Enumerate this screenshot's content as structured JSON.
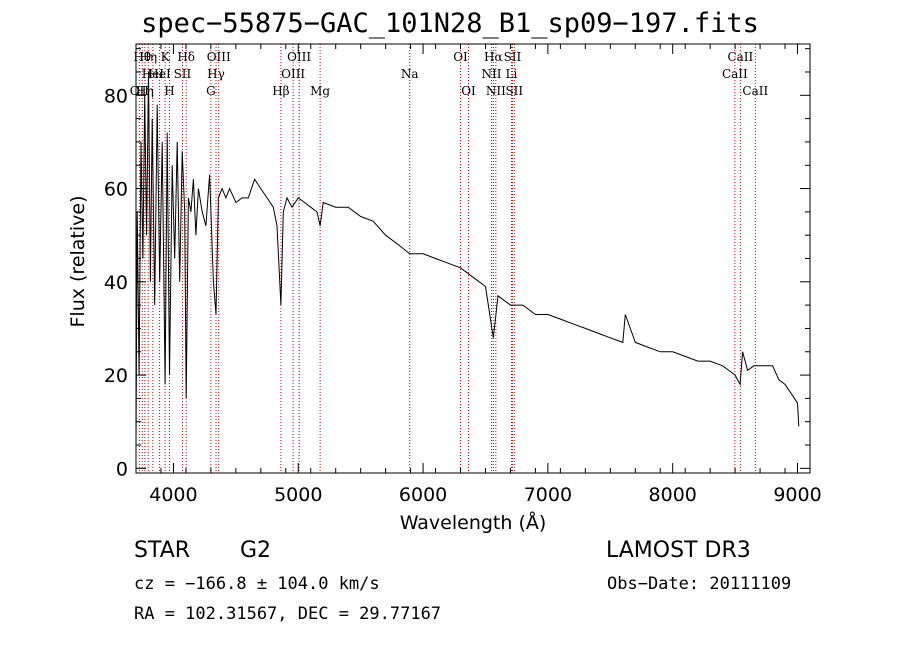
{
  "chart_data": {
    "type": "line",
    "title": "spec−55875−GAC_101N28_B1_sp09−197.fits",
    "xlabel": "Wavelength (Å)",
    "ylabel": "Flux (relative)",
    "xlim": [
      3700,
      9100
    ],
    "ylim": [
      -1,
      91
    ],
    "x_ticks": [
      4000,
      5000,
      6000,
      7000,
      8000,
      9000
    ],
    "y_ticks": [
      0,
      20,
      40,
      60,
      80
    ],
    "series": [
      {
        "name": "spectrum",
        "x": [
          3700,
          3710,
          3725,
          3740,
          3755,
          3770,
          3785,
          3800,
          3815,
          3830,
          3850,
          3870,
          3890,
          3910,
          3933,
          3950,
          3968,
          3990,
          4010,
          4030,
          4050,
          4070,
          4090,
          4102,
          4120,
          4140,
          4160,
          4180,
          4200,
          4230,
          4260,
          4290,
          4320,
          4341,
          4360,
          4390,
          4420,
          4450,
          4500,
          4550,
          4600,
          4650,
          4700,
          4750,
          4800,
          4830,
          4861,
          4880,
          4910,
          4950,
          5000,
          5050,
          5100,
          5150,
          5175,
          5200,
          5300,
          5400,
          5500,
          5600,
          5700,
          5800,
          5893,
          5950,
          6000,
          6100,
          6200,
          6300,
          6400,
          6500,
          6563,
          6600,
          6700,
          6800,
          6900,
          7000,
          7100,
          7200,
          7300,
          7400,
          7500,
          7600,
          7620,
          7700,
          7800,
          7900,
          8000,
          8100,
          8200,
          8300,
          8400,
          8450,
          8500,
          8540,
          8560,
          8600,
          8650,
          8700,
          8750,
          8800,
          8850,
          8900,
          8950,
          9000,
          9010
        ],
        "y": [
          5,
          55,
          20,
          70,
          45,
          80,
          50,
          85,
          40,
          75,
          35,
          78,
          40,
          70,
          18,
          72,
          20,
          65,
          45,
          70,
          40,
          68,
          55,
          15,
          58,
          55,
          62,
          50,
          60,
          55,
          52,
          63,
          40,
          33,
          58,
          60,
          58,
          60,
          57,
          58,
          58,
          62,
          60,
          58,
          56,
          52,
          35,
          55,
          58,
          56,
          58,
          57,
          56,
          55,
          52,
          57,
          56,
          56,
          54,
          53,
          50,
          48,
          46,
          46,
          46,
          45,
          44,
          43,
          41,
          39,
          28,
          37,
          35,
          35,
          33,
          33,
          32,
          31,
          30,
          29,
          28,
          27,
          33,
          27,
          26,
          25,
          25,
          24,
          23,
          23,
          22,
          21,
          20,
          18,
          25,
          21,
          22,
          22,
          22,
          22,
          19,
          18,
          16,
          14,
          9
        ]
      }
    ],
    "lines": [
      {
        "w": 3727,
        "label": "OII",
        "row": 3
      },
      {
        "w": 3750,
        "label": "Hθ",
        "row": 1
      },
      {
        "w": 3771,
        "label": "Hη",
        "row": 3
      },
      {
        "w": 3798,
        "label": "Hη",
        "row": 1
      },
      {
        "w": 3835,
        "label": "HeI",
        "row": 2
      },
      {
        "w": 3889,
        "label": "HeI",
        "row": 2
      },
      {
        "w": 3933,
        "label": "K",
        "row": 1
      },
      {
        "w": 3968,
        "label": "H",
        "row": 3
      },
      {
        "w": 4072,
        "label": "SII",
        "row": 2
      },
      {
        "w": 4102,
        "label": "Hδ",
        "row": 1
      },
      {
        "w": 4300,
        "label": "G",
        "row": 3
      },
      {
        "w": 4341,
        "label": "Hγ",
        "row": 2
      },
      {
        "w": 4363,
        "label": "OIII",
        "row": 1
      },
      {
        "w": 4861,
        "label": "Hβ",
        "row": 3
      },
      {
        "w": 4959,
        "label": "OIII",
        "row": 2
      },
      {
        "w": 5007,
        "label": "OIII",
        "row": 1
      },
      {
        "w": 5175,
        "label": "Mg",
        "row": 3
      },
      {
        "w": 5893,
        "label": "Na",
        "row": 2
      },
      {
        "w": 6300,
        "label": "OI",
        "row": 1
      },
      {
        "w": 6364,
        "label": "OI",
        "row": 3
      },
      {
        "w": 6548,
        "label": "NII",
        "row": 2
      },
      {
        "w": 6563,
        "label": "Hα",
        "row": 1
      },
      {
        "w": 6583,
        "label": "NII",
        "row": 3
      },
      {
        "w": 6708,
        "label": "Li",
        "row": 2
      },
      {
        "w": 6716,
        "label": "SII",
        "row": 1
      },
      {
        "w": 6731,
        "label": "SII",
        "row": 3
      },
      {
        "w": 8498,
        "label": "CaII",
        "row": 2
      },
      {
        "w": 8542,
        "label": "CaII",
        "row": 1
      },
      {
        "w": 8662,
        "label": "CaII",
        "row": 3
      }
    ],
    "line_color": "#c00000"
  },
  "info": {
    "class": "STAR",
    "subclass": "G2",
    "survey": "LAMOST DR3",
    "cz": "cz = −166.8 ± 104.0 km/s",
    "obs_date": "Obs−Date: 20111109",
    "radec": "RA = 102.31567, DEC =  29.77167"
  }
}
